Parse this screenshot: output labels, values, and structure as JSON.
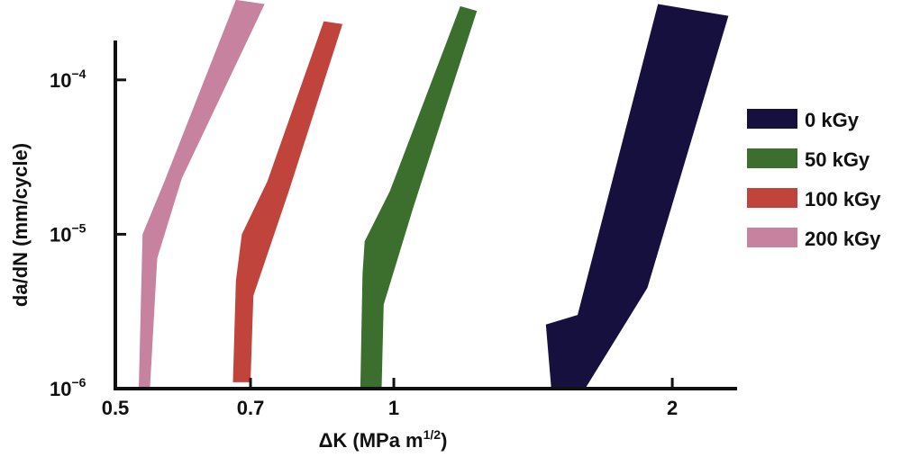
{
  "chart_data": {
    "type": "area",
    "title": "",
    "xscale": "log",
    "yscale": "log",
    "xlim": [
      0.5,
      2.35
    ],
    "ylim": [
      1e-06,
      0.00018
    ],
    "xlabel": {
      "main": "ΔK (MPa m",
      "sup": "1/2",
      "close": ")"
    },
    "ylabel": "da/dN (mm/cycle)",
    "xticks": [
      {
        "value": 0.5,
        "label": "0.5"
      },
      {
        "value": 0.7,
        "label": "0.7"
      },
      {
        "value": 1,
        "label": "1"
      },
      {
        "value": 2,
        "label": "2"
      }
    ],
    "yticks": [
      {
        "value": 1e-06,
        "base": "10",
        "exp": "−6"
      },
      {
        "value": 1e-05,
        "base": "10",
        "exp": "−5"
      },
      {
        "value": 0.0001,
        "base": "10",
        "exp": "−4"
      }
    ],
    "legend_position": "right",
    "series": [
      {
        "name": "0 kGy",
        "color": "#15103d",
        "upper": [
          [
            1.48,
            1e-06
          ],
          [
            1.61,
            1e-06
          ],
          [
            1.88,
            4.5e-06
          ],
          [
            2.3,
            0.00026
          ]
        ],
        "lower": [
          [
            1.93,
            0.00031
          ],
          [
            1.58,
            3e-06
          ],
          [
            1.46,
            2.6e-06
          ],
          [
            1.48,
            1e-06
          ]
        ]
      },
      {
        "name": "50 kGy",
        "color": "#3c6e2e",
        "upper": [
          [
            0.92,
            1e-06
          ],
          [
            0.97,
            1e-06
          ],
          [
            0.975,
            3.5e-06
          ],
          [
            1.05,
            1.5e-05
          ],
          [
            1.23,
            0.00028
          ]
        ],
        "lower": [
          [
            1.18,
            0.0003
          ],
          [
            0.99,
            1.9e-05
          ],
          [
            0.93,
            9e-06
          ],
          [
            0.925,
            5.5e-06
          ],
          [
            0.92,
            1e-06
          ]
        ]
      },
      {
        "name": "100 kGy",
        "color": "#c0443c",
        "upper": [
          [
            0.67,
            1.1e-06
          ],
          [
            0.7,
            1.1e-06
          ],
          [
            0.705,
            4e-06
          ],
          [
            0.77,
            1.9e-05
          ],
          [
            0.88,
            0.00023
          ]
        ],
        "lower": [
          [
            0.84,
            0.00024
          ],
          [
            0.73,
            2.2e-05
          ],
          [
            0.685,
            1e-05
          ],
          [
            0.675,
            5e-06
          ],
          [
            0.67,
            1.1e-06
          ]
        ]
      },
      {
        "name": "200 kGy",
        "color": "#c7829f",
        "upper": [
          [
            0.53,
            1e-06
          ],
          [
            0.545,
            1e-06
          ],
          [
            0.555,
            7e-06
          ],
          [
            0.59,
            2.3e-05
          ],
          [
            0.725,
            0.00031
          ]
        ],
        "lower": [
          [
            0.675,
            0.00033
          ],
          [
            0.565,
            2.2e-05
          ],
          [
            0.535,
            1e-05
          ],
          [
            0.53,
            1e-06
          ]
        ]
      }
    ]
  }
}
